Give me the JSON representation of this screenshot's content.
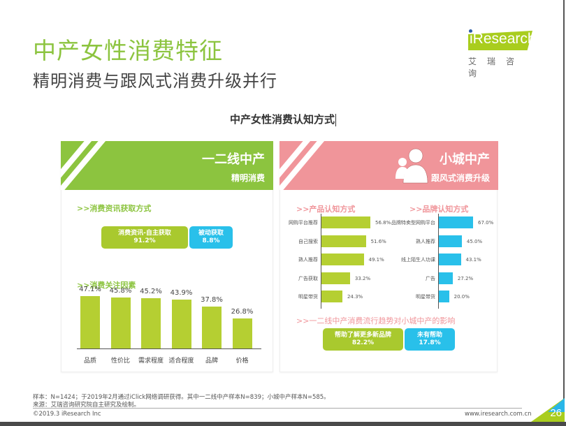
{
  "header": {
    "title": "中产女性消费特征",
    "subtitle": "精明消费与跟风式消费升级并行",
    "logo": {
      "text": "iResearch",
      "cn": "艾瑞咨询"
    }
  },
  "center_title": "中产女性消费认知方式",
  "left_panel": {
    "banner_main": "一二线中产",
    "banner_sub": "精明消费",
    "banner_color": "#8cc43f",
    "section1_title": ">>消费资讯获取方式",
    "pill_a": {
      "label": "消费资讯-自主获取",
      "value": "91.2%"
    },
    "pill_b": {
      "label": "被动获取",
      "value": "8.8%"
    },
    "section2_title": ">>消费关注因素"
  },
  "right_panel": {
    "banner_main": "小城中产",
    "banner_sub": "跟风式消费升级",
    "banner_color": "#f0959a",
    "icon": "users-icon",
    "section1_title": ">>产品认知方式",
    "section2_title": ">>品牌认知方式",
    "section3_title": ">>一二线中产消费流行趋势对小城中产的影响",
    "pill_a": {
      "label": "帮助了解更多新品牌",
      "value": "82.2%"
    },
    "pill_b": {
      "label": "未有帮助",
      "value": "17.8%"
    }
  },
  "chart_data": [
    {
      "type": "bar",
      "title": "消费关注因素",
      "categories": [
        "品质",
        "性价比",
        "需求程度",
        "适合程度",
        "品牌",
        "价格"
      ],
      "values": [
        47.1,
        45.8,
        45.2,
        43.9,
        37.8,
        26.8
      ],
      "labels": [
        "47.1%",
        "45.8%",
        "45.2%",
        "43.9%",
        "37.8%",
        "26.8%"
      ],
      "color": "#b5cf32",
      "ylim": [
        0,
        50
      ]
    },
    {
      "type": "bar",
      "orientation": "horizontal",
      "title": "产品认知方式",
      "categories": [
        "网购平台推荐",
        "自己搜索",
        "熟人推荐",
        "广告获取",
        "明星带货"
      ],
      "values": [
        56.8,
        51.6,
        49.1,
        33.2,
        24.3
      ],
      "labels": [
        "56.8%",
        "51.6%",
        "49.1%",
        "33.2%",
        "24.3%"
      ],
      "color": "#b5cf32"
    },
    {
      "type": "bar",
      "orientation": "horizontal",
      "title": "品牌认知方式",
      "categories": [
        "品牌特卖型网购平台",
        "熟人推荐",
        "线上陌生人功课",
        "广告",
        "明星带货"
      ],
      "values": [
        67.0,
        45.0,
        43.1,
        27.2,
        20.0
      ],
      "labels": [
        "67.0%",
        "45.0%",
        "43.1%",
        "27.2%",
        "20.0%"
      ],
      "color": "#29c0ea"
    },
    {
      "type": "bar",
      "orientation": "stacked-horizontal",
      "title": "消费资讯获取方式",
      "categories": [
        "消费资讯-自主获取",
        "被动获取"
      ],
      "values": [
        91.2,
        8.8
      ]
    },
    {
      "type": "bar",
      "orientation": "stacked-horizontal",
      "title": "一二线中产消费流行趋势对小城中产的影响",
      "categories": [
        "帮助了解更多新品牌",
        "未有帮助"
      ],
      "values": [
        82.2,
        17.8
      ]
    }
  ],
  "footer": {
    "sample": "样本：N=1424；于2019年2月通过iClick网络调研获得。其中一二线中产样本N=839；小城中产样本N=585。",
    "source": "来源：艾瑞咨询研究院自主研究及绘制。",
    "copyright": "©2019.3 iResearch Inc",
    "website": "www.iresearch.com.cn",
    "page": "26"
  }
}
